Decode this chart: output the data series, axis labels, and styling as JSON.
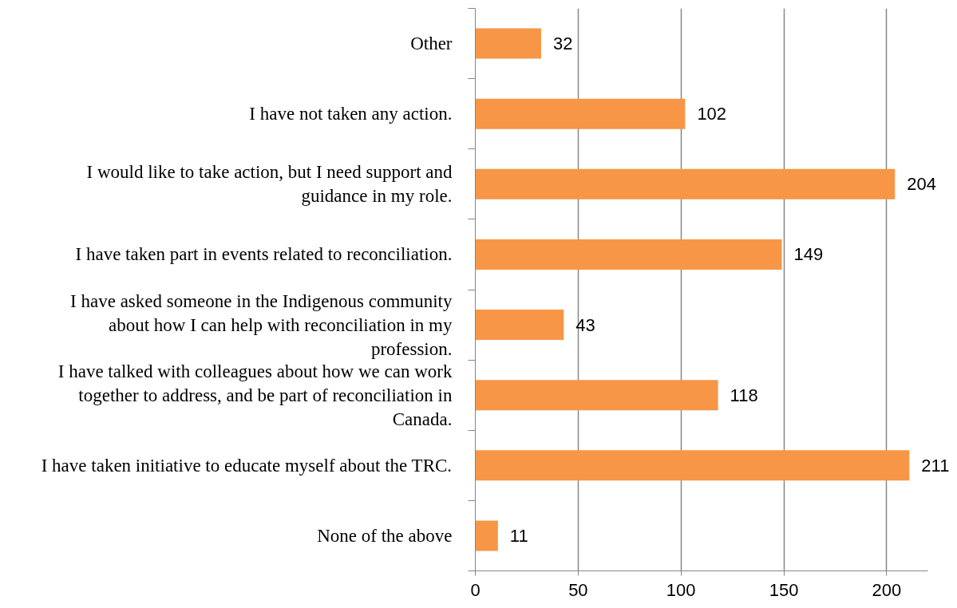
{
  "chart_data": {
    "type": "bar",
    "orientation": "horizontal",
    "categories": [
      "Other",
      "I have not taken any action.",
      "I would like to take action, but I need support and guidance in my role.",
      "I have taken part in events related to reconciliation.",
      "I have asked someone in the Indigenous community about how I can help with reconciliation in my profession.",
      "I have talked with colleagues about how we can work together to address, and be part of reconciliation in Canada.",
      "I have taken initiative to educate myself about the TRC.",
      "None of the above"
    ],
    "values": [
      32,
      102,
      204,
      149,
      43,
      118,
      211,
      11
    ],
    "color": "#f79646",
    "xlim": [
      0,
      220
    ],
    "xticks": [
      0,
      50,
      100,
      150,
      200
    ],
    "grid": "x",
    "data_labels": true
  }
}
